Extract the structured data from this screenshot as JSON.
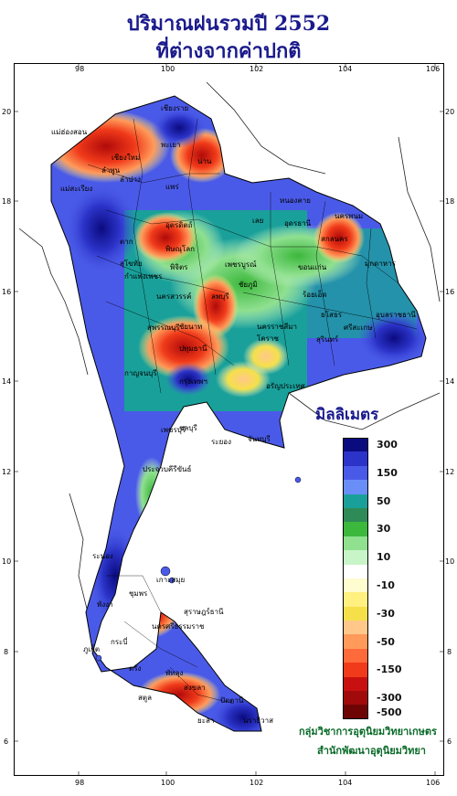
{
  "title": {
    "line1": "ปริมาณฝนรวมปี  2552",
    "line2": "ที่ต่างจากค่าปกติ"
  },
  "axes": {
    "longitudes": [
      "98",
      "100",
      "102",
      "104",
      "106"
    ],
    "latitudes": [
      "20",
      "18",
      "16",
      "14",
      "12",
      "10",
      "8",
      "6"
    ]
  },
  "legend": {
    "title": "มิลลิเมตร",
    "classes": [
      {
        "color": "#0b0b80",
        "label": "300"
      },
      {
        "color": "#2b33c8",
        "label": ""
      },
      {
        "color": "#4a5ae8",
        "label": "150"
      },
      {
        "color": "#6a8ef8",
        "label": ""
      },
      {
        "color": "#1aa09a",
        "label": "50"
      },
      {
        "color": "#2e8b57",
        "label": ""
      },
      {
        "color": "#3cb83c",
        "label": "30"
      },
      {
        "color": "#8fe08f",
        "label": ""
      },
      {
        "color": "#c8f5c8",
        "label": "10"
      },
      {
        "color": "#ffffff",
        "label": ""
      },
      {
        "color": "#fffccf",
        "label": "-10"
      },
      {
        "color": "#fff080",
        "label": ""
      },
      {
        "color": "#f5e04a",
        "label": "-30"
      },
      {
        "color": "#ffc88a",
        "label": ""
      },
      {
        "color": "#ff9a5a",
        "label": "-50"
      },
      {
        "color": "#ff6a3a",
        "label": ""
      },
      {
        "color": "#f03a1a",
        "label": "-150"
      },
      {
        "color": "#c81010",
        "label": ""
      },
      {
        "color": "#a00a0a",
        "label": "-300"
      },
      {
        "color": "#6e0505",
        "label": "-500"
      }
    ]
  },
  "places": [
    "เชียงราย",
    "แม่ฮ่องสอน",
    "เชียงใหม่",
    "ลำพูน",
    "พะเยา",
    "น่าน",
    "ลำปาง",
    "แพร่",
    "แม่สะเรียง",
    "ตาก",
    "พิษณุโลก",
    "อุตรดิตถ์",
    "สุโขทัย",
    "เพชรบูรณ์",
    "กำแพงเพชร",
    "พิจิตร",
    "นครสวรรค์",
    "ลพบุรี",
    "ชัยนาท",
    "สุพรรณบุรี",
    "กาญจนบุรี",
    "ปทุมธานี",
    "กรุงเทพฯ",
    "ชลบุรี",
    "เพชรบุรี",
    "ระยอง",
    "จันทบุรี",
    "ประจวบคีรีขันธ์",
    "หนองคาย",
    "อุดรธานี",
    "เลย",
    "นครพนม",
    "สกลนคร",
    "ขอนแก่น",
    "มุกดาหาร",
    "ร้อยเอ็ด",
    "ชัยภูมิ",
    "ยโสธร",
    "อุบลราชธานี",
    "ศรีสะเกษ",
    "สุรินทร์",
    "นครราชสีมา",
    "โคราช",
    "อรัญประเทศ",
    "ระนอง",
    "ชุมพร",
    "เกาะสมุย",
    "สุราษฎร์ธานี",
    "พังงา",
    "ภูเก็ต",
    "นครศรีธรรมราช",
    "กระบี่",
    "ตรัง",
    "พัทลุง",
    "สงขลา",
    "สตูล",
    "ปัตตานี",
    "ยะลา",
    "นราธิวาส"
  ],
  "credits": {
    "line1": "กลุ่มวิชาการอุตุนิยมวิทยาเกษตร",
    "line2": "สำนักพัฒนาอุตุนิยมวิทยา"
  }
}
